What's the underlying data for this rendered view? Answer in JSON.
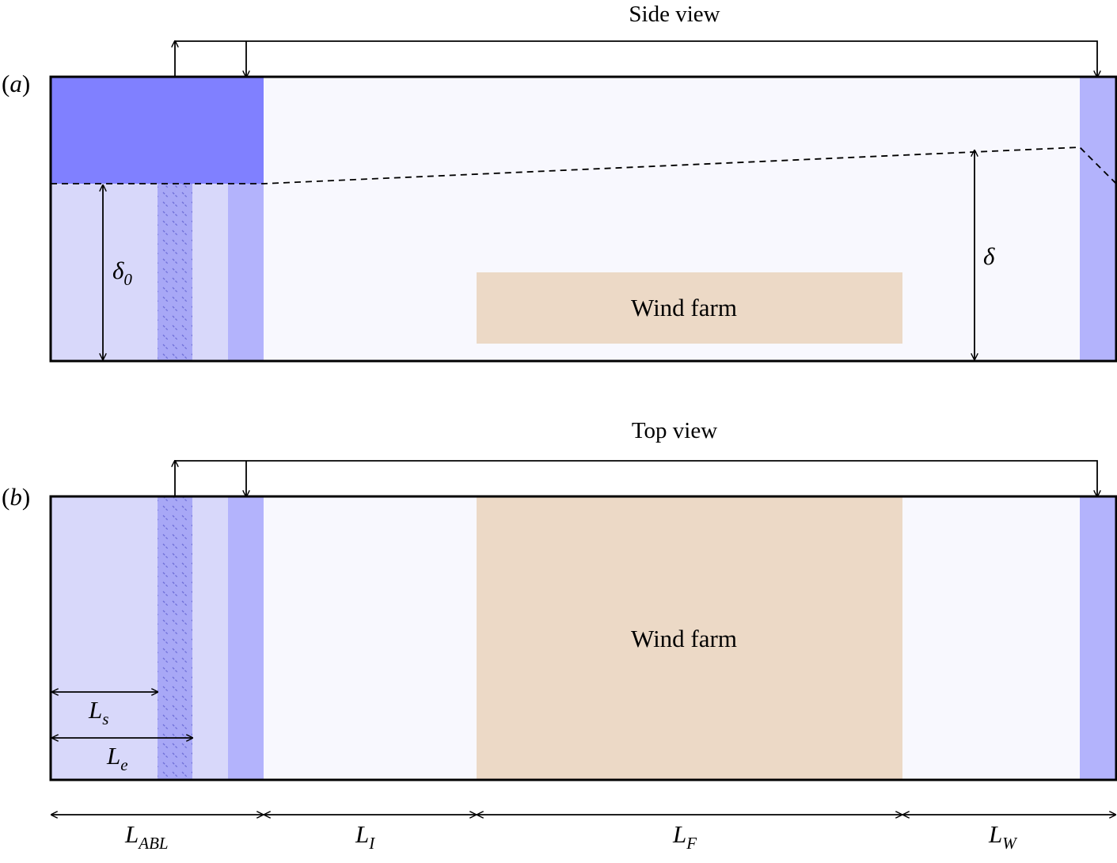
{
  "side_view": {
    "title": "Side view",
    "panel_label_open": "(",
    "panel_label_letter": "a",
    "panel_label_close": ")",
    "delta0_symbol": "δ",
    "delta0_subscript": "0",
    "delta_symbol": "δ",
    "wind_farm_label": "Wind farm"
  },
  "top_view": {
    "title": "Top view",
    "panel_label_open": "(",
    "panel_label_letter": "b",
    "panel_label_close": ")",
    "wind_farm_label": "Wind farm",
    "ls_symbol": "L",
    "ls_subscript": "s",
    "le_symbol": "L",
    "le_subscript": "e"
  },
  "dimensions": {
    "labl_symbol": "L",
    "labl_subscript": "ABL",
    "li_symbol": "L",
    "li_subscript": "I",
    "lf_symbol": "L",
    "lf_subscript": "F",
    "lw_symbol": "L",
    "lw_subscript": "W"
  },
  "colors": {
    "abl_region": "#d8d8fa",
    "inversion_layer": "#8080ff",
    "forcing_strip": "#b3b3fc",
    "hatched_strip": "#a8a8f6",
    "hatch_line": "#6f6fd8",
    "domain_background": "#f8f8fe",
    "wind_farm": "#ecd9c6",
    "outline": "#000000"
  }
}
